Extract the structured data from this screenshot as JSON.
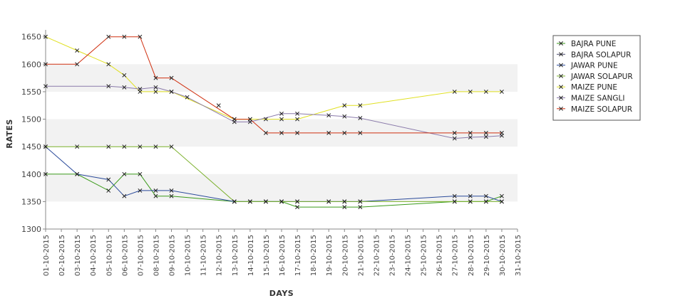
{
  "chart_data": {
    "type": "line",
    "title": "",
    "xlabel": "DAYS",
    "ylabel": "RATES",
    "ylim": [
      1300,
      1660
    ],
    "yticks": [
      1300,
      1350,
      1400,
      1450,
      1500,
      1550,
      1600,
      1650
    ],
    "grid": "alternating horizontal bands",
    "legend_position": "top-right",
    "categories": [
      "01-10-2015",
      "02-10-2015",
      "03-10-2015",
      "04-10-2015",
      "05-10-2015",
      "06-10-2015",
      "07-10-2015",
      "08-10-2015",
      "09-10-2015",
      "10-10-2015",
      "11-10-2015",
      "12-10-2015",
      "13-10-2015",
      "14-10-2015",
      "15-10-2015",
      "16-10-2015",
      "17-10-2015",
      "18-10-2015",
      "19-10-2015",
      "20-10-2015",
      "21-10-2015",
      "22-10-2015",
      "23-10-2015",
      "24-10-2015",
      "25-10-2015",
      "26-10-2015",
      "27-10-2015",
      "28-10-2015",
      "29-10-2015",
      "30-10-2015",
      "31-10-2015"
    ],
    "series": [
      {
        "name": "BAJRA PUNE",
        "color": "#3a9a1a",
        "points": [
          [
            "01-10-2015",
            1400
          ],
          [
            "03-10-2015",
            1400
          ],
          [
            "05-10-2015",
            1370
          ],
          [
            "06-10-2015",
            1400
          ],
          [
            "07-10-2015",
            1400
          ],
          [
            "08-10-2015",
            1360
          ],
          [
            "09-10-2015",
            1360
          ],
          [
            "13-10-2015",
            1350
          ],
          [
            "14-10-2015",
            1350
          ],
          [
            "15-10-2015",
            1350
          ],
          [
            "16-10-2015",
            1350
          ],
          [
            "17-10-2015",
            1340
          ],
          [
            "20-10-2015",
            1340
          ],
          [
            "21-10-2015",
            1340
          ],
          [
            "27-10-2015",
            1350
          ],
          [
            "28-10-2015",
            1350
          ],
          [
            "29-10-2015",
            1350
          ],
          [
            "30-10-2015",
            1360
          ]
        ]
      },
      {
        "name": "BAJRA SOLAPUR",
        "color": "#4a4a6a",
        "points": [
          [
            "12-10-2015",
            1525
          ]
        ]
      },
      {
        "name": "JAWAR PUNE",
        "color": "#2a4a9a",
        "points": [
          [
            "01-10-2015",
            1450
          ],
          [
            "03-10-2015",
            1400
          ],
          [
            "05-10-2015",
            1390
          ],
          [
            "06-10-2015",
            1360
          ],
          [
            "07-10-2015",
            1370
          ],
          [
            "08-10-2015",
            1370
          ],
          [
            "09-10-2015",
            1370
          ],
          [
            "13-10-2015",
            1350
          ],
          [
            "14-10-2015",
            1350
          ],
          [
            "15-10-2015",
            1350
          ],
          [
            "16-10-2015",
            1350
          ],
          [
            "17-10-2015",
            1350
          ],
          [
            "19-10-2015",
            1350
          ],
          [
            "20-10-2015",
            1350
          ],
          [
            "21-10-2015",
            1350
          ],
          [
            "27-10-2015",
            1360
          ],
          [
            "28-10-2015",
            1360
          ],
          [
            "29-10-2015",
            1360
          ],
          [
            "30-10-2015",
            1350
          ]
        ]
      },
      {
        "name": "JAWAR SOLAPUR",
        "color": "#7ab02a",
        "points": [
          [
            "01-10-2015",
            1450
          ],
          [
            "03-10-2015",
            1450
          ],
          [
            "05-10-2015",
            1450
          ],
          [
            "06-10-2015",
            1450
          ],
          [
            "07-10-2015",
            1450
          ],
          [
            "08-10-2015",
            1450
          ],
          [
            "09-10-2015",
            1450
          ],
          [
            "13-10-2015",
            1350
          ],
          [
            "14-10-2015",
            1350
          ],
          [
            "15-10-2015",
            1350
          ],
          [
            "16-10-2015",
            1350
          ],
          [
            "17-10-2015",
            1350
          ],
          [
            "19-10-2015",
            1350
          ],
          [
            "20-10-2015",
            1350
          ],
          [
            "21-10-2015",
            1350
          ],
          [
            "27-10-2015",
            1350
          ],
          [
            "28-10-2015",
            1350
          ],
          [
            "29-10-2015",
            1350
          ],
          [
            "30-10-2015",
            1350
          ]
        ]
      },
      {
        "name": "MAIZE PUNE",
        "color": "#e0e020",
        "points": [
          [
            "01-10-2015",
            1650
          ],
          [
            "03-10-2015",
            1625
          ],
          [
            "05-10-2015",
            1600
          ],
          [
            "06-10-2015",
            1580
          ],
          [
            "07-10-2015",
            1550
          ],
          [
            "08-10-2015",
            1550
          ],
          [
            "09-10-2015",
            1550
          ],
          [
            "13-10-2015",
            1500
          ],
          [
            "14-10-2015",
            1500
          ],
          [
            "15-10-2015",
            1500
          ],
          [
            "16-10-2015",
            1500
          ],
          [
            "17-10-2015",
            1500
          ],
          [
            "20-10-2015",
            1525
          ],
          [
            "21-10-2015",
            1525
          ],
          [
            "27-10-2015",
            1550
          ],
          [
            "28-10-2015",
            1550
          ],
          [
            "29-10-2015",
            1550
          ],
          [
            "30-10-2015",
            1550
          ]
        ]
      },
      {
        "name": "MAIZE SANGLI",
        "color": "#8a7aaa",
        "points": [
          [
            "01-10-2015",
            1560
          ],
          [
            "05-10-2015",
            1560
          ],
          [
            "06-10-2015",
            1558
          ],
          [
            "07-10-2015",
            1555
          ],
          [
            "08-10-2015",
            1558
          ],
          [
            "09-10-2015",
            1550
          ],
          [
            "10-10-2015",
            1540
          ],
          [
            "13-10-2015",
            1495
          ],
          [
            "14-10-2015",
            1495
          ],
          [
            "16-10-2015",
            1510
          ],
          [
            "17-10-2015",
            1510
          ],
          [
            "19-10-2015",
            1507
          ],
          [
            "20-10-2015",
            1505
          ],
          [
            "21-10-2015",
            1502
          ],
          [
            "27-10-2015",
            1465
          ],
          [
            "28-10-2015",
            1467
          ],
          [
            "29-10-2015",
            1468
          ],
          [
            "30-10-2015",
            1470
          ]
        ]
      },
      {
        "name": "MAIZE SOLAPUR",
        "color": "#d03010",
        "points": [
          [
            "01-10-2015",
            1600
          ],
          [
            "03-10-2015",
            1600
          ],
          [
            "05-10-2015",
            1650
          ],
          [
            "06-10-2015",
            1650
          ],
          [
            "07-10-2015",
            1650
          ],
          [
            "08-10-2015",
            1575
          ],
          [
            "09-10-2015",
            1575
          ],
          [
            "13-10-2015",
            1500
          ],
          [
            "14-10-2015",
            1500
          ],
          [
            "15-10-2015",
            1475
          ],
          [
            "16-10-2015",
            1475
          ],
          [
            "17-10-2015",
            1475
          ],
          [
            "19-10-2015",
            1475
          ],
          [
            "20-10-2015",
            1475
          ],
          [
            "21-10-2015",
            1475
          ],
          [
            "27-10-2015",
            1475
          ],
          [
            "28-10-2015",
            1475
          ],
          [
            "29-10-2015",
            1475
          ],
          [
            "30-10-2015",
            1475
          ]
        ]
      }
    ]
  }
}
